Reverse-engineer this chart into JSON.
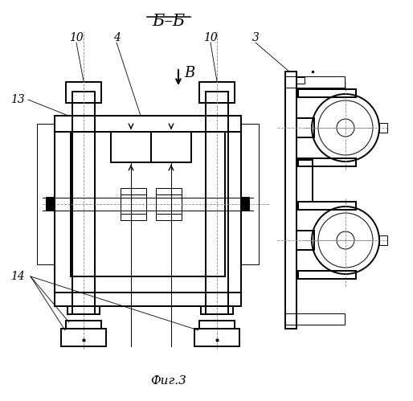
{
  "title": "Б–Б",
  "fig_label": "Фиг.3",
  "bg_color": "#ffffff",
  "line_color": "#000000",
  "dash_color": "#888888",
  "lw_main": 1.4,
  "lw_thin": 0.7,
  "lw_dashed": 0.6
}
